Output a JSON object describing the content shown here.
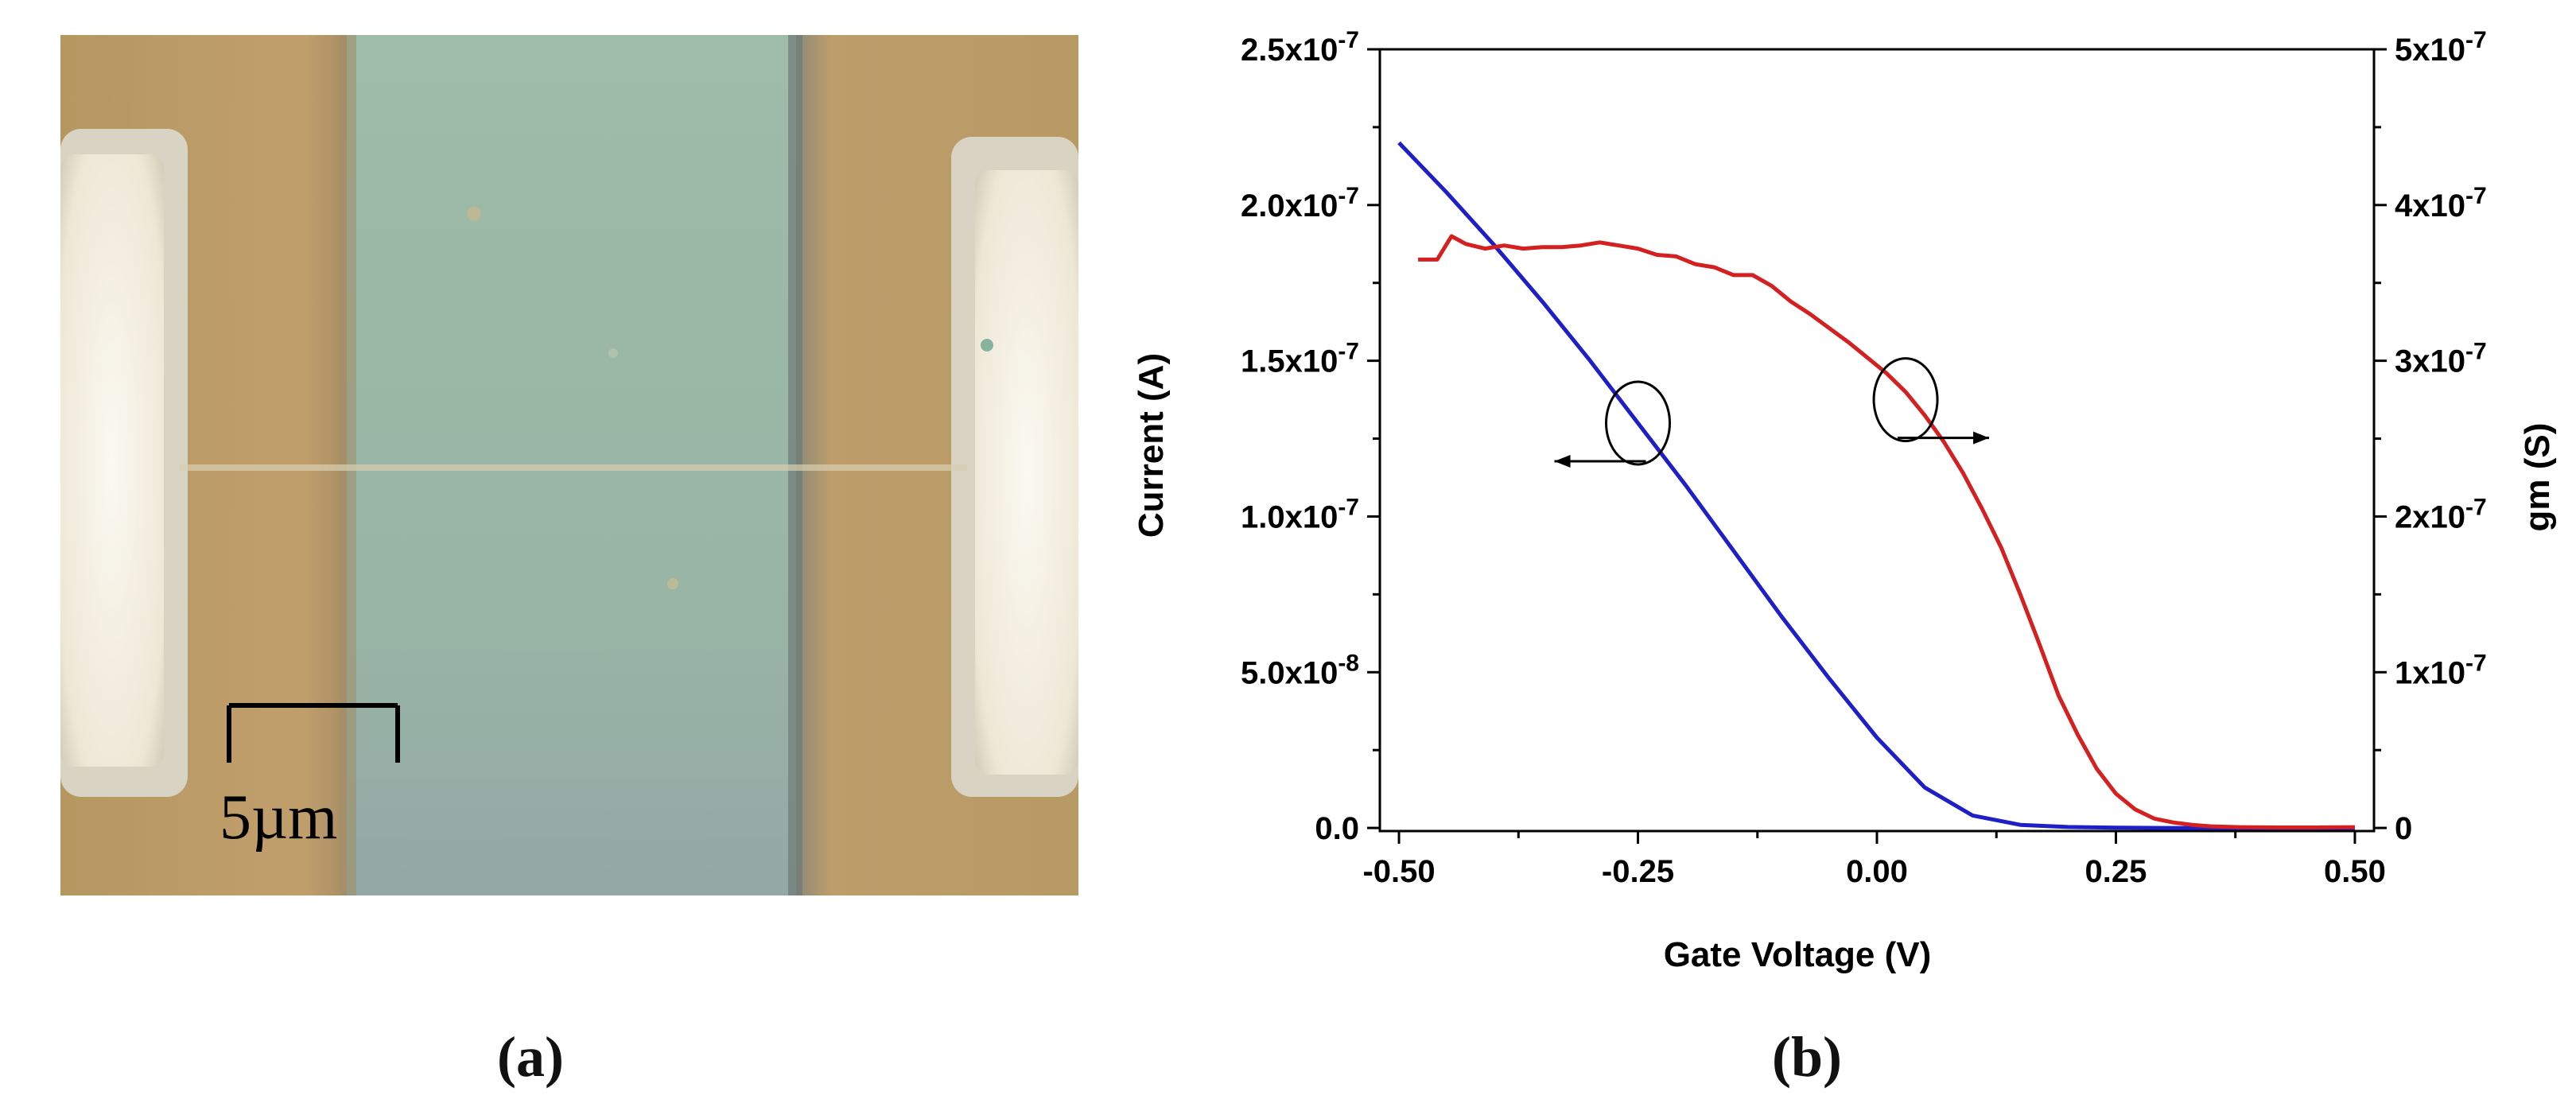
{
  "panel_a": {
    "label": "(a)",
    "scale_bar_text": "5µm",
    "scale_bar_value_um": 5,
    "colors": {
      "pad": "#b99a6a",
      "channel": "#9db8a6",
      "contact": "#f2ede1",
      "scale_bar": "#000000"
    }
  },
  "panel_b": {
    "label": "(b)"
  },
  "chart_data": {
    "type": "line",
    "title": "",
    "xlabel": "Gate Voltage (V)",
    "ylabel": "Current (A)",
    "y2label": "gm (S)",
    "xlim": [
      -0.52,
      0.52
    ],
    "ylim": [
      -1e-09,
      2.5e-07
    ],
    "y2lim": [
      -2e-09,
      5e-07
    ],
    "x_ticks": [
      -0.5,
      -0.25,
      0.0,
      0.25,
      0.5
    ],
    "x_tick_labels": [
      "-0.50",
      "-0.25",
      "0.00",
      "0.25",
      "0.50"
    ],
    "y_ticks": [
      0,
      5e-08,
      1e-07,
      1.5e-07,
      2e-07,
      2.5e-07
    ],
    "y_tick_labels": [
      "0.0",
      "5.0x10-8",
      "1.0x10-7",
      "1.5x10-7",
      "2.0x10-7",
      "2.5x10-7"
    ],
    "y2_ticks": [
      0,
      1e-07,
      2e-07,
      3e-07,
      4e-07,
      5e-07
    ],
    "y2_tick_labels": [
      "0",
      "1x10-7",
      "2x10-7",
      "3x10-7",
      "4x10-7",
      "5x10-7"
    ],
    "grid": false,
    "series": [
      {
        "axis": "left",
        "color": "#1f1fc8",
        "x": [
          -0.5,
          -0.45,
          -0.4,
          -0.35,
          -0.3,
          -0.25,
          -0.2,
          -0.15,
          -0.1,
          -0.05,
          0.0,
          0.05,
          0.1,
          0.15,
          0.2,
          0.25,
          0.3,
          0.35,
          0.4,
          0.45,
          0.5
        ],
        "y": [
          2.2e-07,
          2.04e-07,
          1.87e-07,
          1.69e-07,
          1.5e-07,
          1.3e-07,
          1.1e-07,
          8.9e-08,
          6.8e-08,
          4.8e-08,
          2.9e-08,
          1.3e-08,
          4e-09,
          1e-09,
          3e-10,
          1e-10,
          0,
          0,
          0,
          0,
          0
        ]
      },
      {
        "axis": "right",
        "color": "#d42020",
        "x": [
          -0.48,
          -0.46,
          -0.445,
          -0.43,
          -0.41,
          -0.39,
          -0.37,
          -0.35,
          -0.33,
          -0.31,
          -0.29,
          -0.27,
          -0.25,
          -0.23,
          -0.21,
          -0.19,
          -0.17,
          -0.15,
          -0.13,
          -0.11,
          -0.09,
          -0.07,
          -0.05,
          -0.03,
          -0.01,
          0.01,
          0.03,
          0.05,
          0.07,
          0.09,
          0.11,
          0.13,
          0.15,
          0.17,
          0.19,
          0.21,
          0.23,
          0.25,
          0.27,
          0.29,
          0.31,
          0.33,
          0.35,
          0.38,
          0.42,
          0.46,
          0.5
        ],
        "y": [
          3.65e-07,
          3.65e-07,
          3.8e-07,
          3.75e-07,
          3.72e-07,
          3.74e-07,
          3.72e-07,
          3.73e-07,
          3.73e-07,
          3.74e-07,
          3.76e-07,
          3.74e-07,
          3.72e-07,
          3.68e-07,
          3.67e-07,
          3.62e-07,
          3.6e-07,
          3.55e-07,
          3.55e-07,
          3.48e-07,
          3.38e-07,
          3.3e-07,
          3.21e-07,
          3.12e-07,
          3.02e-07,
          2.92e-07,
          2.8e-07,
          2.65e-07,
          2.48e-07,
          2.28e-07,
          2.05e-07,
          1.8e-07,
          1.5e-07,
          1.18e-07,
          8.5e-08,
          6e-08,
          3.8e-08,
          2.2e-08,
          1.2e-08,
          6e-09,
          3.5e-09,
          2e-09,
          1e-09,
          5e-10,
          3e-10,
          3e-10,
          5e-10
        ]
      }
    ],
    "annotations": [
      {
        "type": "ellipse-arrow",
        "x": -0.25,
        "y_axis": "left",
        "y": 1.3e-07,
        "arrow": "left"
      },
      {
        "type": "ellipse-arrow",
        "x": 0.03,
        "y_axis": "right",
        "y": 2.75e-07,
        "arrow": "right"
      }
    ]
  }
}
